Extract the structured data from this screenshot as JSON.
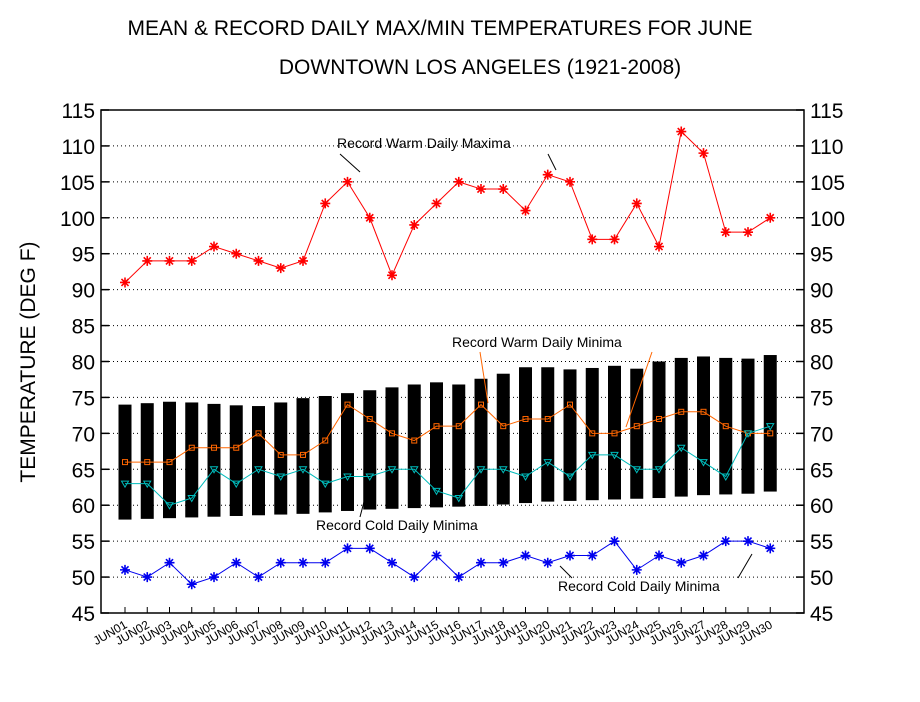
{
  "chart_data": {
    "type": "line",
    "title_line1": "MEAN & RECORD DAILY MAX/MIN TEMPERATURES FOR JUNE",
    "title_line2": "DOWNTOWN LOS ANGELES (1921-2008)",
    "ylabel": "TEMPERATURE (DEG F)",
    "xlabel": "",
    "ylim": [
      45,
      115
    ],
    "yticks": [
      45,
      50,
      55,
      60,
      65,
      70,
      75,
      80,
      85,
      90,
      95,
      100,
      105,
      110,
      115
    ],
    "grid": "horizontal dotted",
    "categories": [
      "JUN01",
      "JUN02",
      "JUN03",
      "JUN04",
      "JUN05",
      "JUN06",
      "JUN07",
      "JUN08",
      "JUN09",
      "JUN10",
      "JUN11",
      "JUN12",
      "JUN13",
      "JUN14",
      "JUN15",
      "JUN16",
      "JUN17",
      "JUN18",
      "JUN19",
      "JUN20",
      "JUN21",
      "JUN22",
      "JUN23",
      "JUN24",
      "JUN25",
      "JUN26",
      "JUN27",
      "JUN28",
      "JUN29",
      "JUN30"
    ],
    "mean_range_bars": {
      "color": "#000000",
      "low": [
        58,
        58.1,
        58.2,
        58.3,
        58.4,
        58.5,
        58.6,
        58.7,
        58.8,
        59,
        59.2,
        59.4,
        59.5,
        59.6,
        59.7,
        59.8,
        59.9,
        60.1,
        60.3,
        60.5,
        60.6,
        60.7,
        60.8,
        60.9,
        61,
        61.2,
        61.4,
        61.5,
        61.6,
        61.9
      ],
      "high": [
        74,
        74.2,
        74.4,
        74.3,
        74.1,
        73.9,
        73.8,
        74.3,
        74.9,
        75.2,
        75.6,
        76,
        76.4,
        76.8,
        77.1,
        76.8,
        77.6,
        78.3,
        79.2,
        79.2,
        78.9,
        79.1,
        79.4,
        79,
        80,
        80.5,
        80.7,
        80.5,
        80.4,
        80.9
      ]
    },
    "series": [
      {
        "key": "warm_max",
        "color": "#ff0000",
        "marker": "star",
        "values": [
          91,
          94,
          94,
          94,
          96,
          95,
          94,
          93,
          94,
          102,
          105,
          100,
          92,
          99,
          102,
          105,
          104,
          104,
          101,
          106,
          105,
          97,
          97,
          102,
          96,
          112,
          109,
          98,
          98,
          100
        ]
      },
      {
        "key": "warm_min",
        "color": "#ff6600",
        "marker": "square",
        "values": [
          66,
          66,
          66,
          68,
          68,
          68,
          70,
          67,
          67,
          69,
          74,
          72,
          70,
          69,
          71,
          71,
          74,
          71,
          72,
          72,
          74,
          70,
          70,
          71,
          72,
          73,
          73,
          71,
          70,
          70
        ]
      },
      {
        "key": "cold_min_mean",
        "color": "#00bbbb",
        "marker": "triangle",
        "values": [
          63,
          63,
          60,
          61,
          65,
          63,
          65,
          64,
          65,
          63,
          64,
          64,
          65,
          65,
          62,
          61,
          65,
          65,
          64,
          66,
          64,
          67,
          67,
          65,
          65,
          68,
          66,
          64,
          70,
          71
        ]
      },
      {
        "key": "cold_min",
        "color": "#0000ee",
        "marker": "star",
        "values": [
          51,
          50,
          52,
          49,
          50,
          52,
          50,
          52,
          52,
          52,
          54,
          54,
          52,
          50,
          53,
          50,
          52,
          52,
          53,
          52,
          53,
          53,
          55,
          51,
          53,
          52,
          53,
          55,
          55,
          54
        ]
      }
    ],
    "annotations": [
      {
        "key": "ann_warm_max",
        "text": "Record Warm Daily Maxima"
      },
      {
        "key": "ann_warm_min",
        "text": "Record Warm Daily Minima"
      },
      {
        "key": "ann_cold_min_mean",
        "text": "Record Cold Daily Minima"
      },
      {
        "key": "ann_cold_min",
        "text": "Record Cold Daily Minima"
      }
    ]
  }
}
